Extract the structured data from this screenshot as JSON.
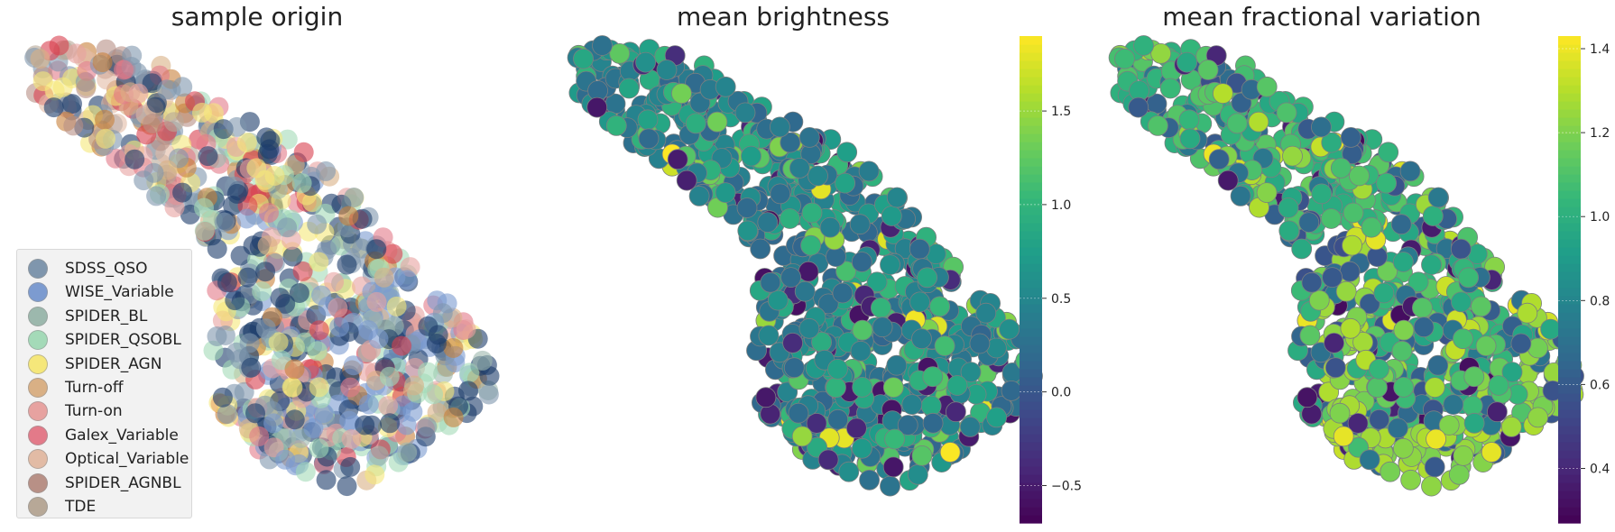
{
  "panels": [
    {
      "title": "sample origin"
    },
    {
      "title": "mean brightness"
    },
    {
      "title": "mean fractional variation"
    }
  ],
  "chart_data": [
    {
      "type": "scatter",
      "title": "sample origin",
      "xlabel": "",
      "ylabel": "",
      "grid": false,
      "legend_position": "lower-left",
      "series": [
        {
          "name": "SDSS_QSO",
          "color": "#7f96ad"
        },
        {
          "name": "WISE_Variable",
          "color": "#7c9bd0"
        },
        {
          "name": "SPIDER_BL",
          "color": "#9cb8ad"
        },
        {
          "name": "SPIDER_QSOBL",
          "color": "#a4dab8"
        },
        {
          "name": "SPIDER_AGN",
          "color": "#f5e77a"
        },
        {
          "name": "Turn-off",
          "color": "#d9b085"
        },
        {
          "name": "Turn-on",
          "color": "#e7a2a0"
        },
        {
          "name": "Galex_Variable",
          "color": "#e37a89"
        },
        {
          "name": "Optical_Variable",
          "color": "#e2bba5"
        },
        {
          "name": "SPIDER_AGNBL",
          "color": "#b89086"
        },
        {
          "name": "TDE",
          "color": "#b7a897"
        }
      ]
    },
    {
      "type": "scatter",
      "title": "mean brightness",
      "colormap": "viridis",
      "colorbar": {
        "min": -0.7,
        "max": 1.9,
        "ticks": [
          -0.5,
          0.0,
          0.5,
          1.0,
          1.5
        ],
        "tick_labels": [
          "−0.5",
          "0.0",
          "0.5",
          "1.0",
          "1.5"
        ]
      }
    },
    {
      "type": "scatter",
      "title": "mean fractional variation",
      "colormap": "viridis",
      "colorbar": {
        "min": 0.27,
        "max": 1.43,
        "ticks": [
          0.4,
          0.6,
          0.8,
          1.0,
          1.2,
          1.4
        ],
        "tick_labels": [
          "0.4",
          "0.6",
          "0.8",
          "1.0",
          "1.2",
          "1.4"
        ]
      }
    }
  ]
}
